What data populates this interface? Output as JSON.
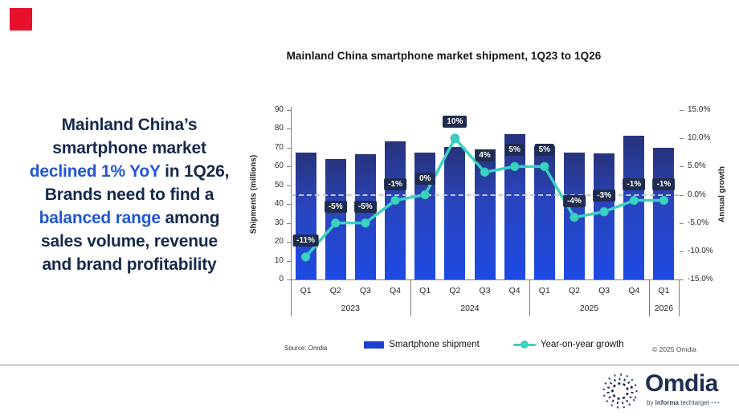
{
  "page": {
    "background": "#ffffff"
  },
  "brand": {
    "red_square_color": "#e8112d"
  },
  "headline": {
    "lines": [
      [
        {
          "t": "Mainland China’s",
          "c": "navy"
        }
      ],
      [
        {
          "t": "smartphone market",
          "c": "navy"
        }
      ],
      [
        {
          "t": "declined 1% YoY",
          "c": "blue"
        },
        {
          "t": " in 1Q26,",
          "c": "navy"
        }
      ],
      [
        {
          "t": "Brands need to find a",
          "c": "navy"
        }
      ],
      [
        {
          "t": "balanced range",
          "c": "blue"
        },
        {
          "t": " among",
          "c": "navy"
        }
      ],
      [
        {
          "t": "sales volume, revenue",
          "c": "navy"
        }
      ],
      [
        {
          "t": "and brand profitability",
          "c": "navy"
        }
      ]
    ],
    "navy": "#16294d",
    "blue": "#2156d4"
  },
  "chart_data": {
    "type": "bar",
    "title": "Mainland China smartphone market shipment, 1Q23 to 1Q26",
    "categories": [
      "Q1",
      "Q2",
      "Q3",
      "Q4",
      "Q1",
      "Q2",
      "Q3",
      "Q4",
      "Q1",
      "Q2",
      "Q3",
      "Q4",
      "Q1"
    ],
    "year_groups": [
      {
        "label": "2023",
        "span": 4
      },
      {
        "label": "2024",
        "span": 4
      },
      {
        "label": "2025",
        "span": 4
      },
      {
        "label": "2026",
        "span": 1
      }
    ],
    "series": [
      {
        "name": "Smartphone shipment",
        "type": "bar",
        "axis": "left",
        "values": [
          67.5,
          64,
          66.5,
          73.5,
          67.5,
          70.4,
          69,
          77,
          71,
          67.5,
          67,
          76.5,
          70
        ]
      },
      {
        "name": "Year-on-year growth",
        "type": "line",
        "axis": "right",
        "values": [
          -11,
          -5,
          -5,
          -1,
          0,
          10,
          4,
          5,
          5,
          -4,
          -3,
          -1,
          -1
        ],
        "labels": [
          "-11%",
          "-5%",
          "-5%",
          "-1%",
          "0%",
          "10%",
          "4%",
          "5%",
          "5%",
          "-4%",
          "-3%",
          "-1%",
          "-1%"
        ]
      }
    ],
    "left_axis": {
      "label": "Shipments (millions)",
      "min": 0,
      "max": 90,
      "ticks": [
        90,
        80,
        70,
        60,
        50,
        40,
        30,
        20,
        10,
        0
      ]
    },
    "right_axis": {
      "label": "Annual growth",
      "min": -15,
      "max": 15,
      "ticks": [
        "15.0%",
        "10.0%",
        "5.0%",
        "0.0%",
        "-5.0%",
        "-10.0%",
        "-15.0%"
      ]
    },
    "zero_reference_line_pct": 0,
    "grid": "off",
    "legend_position": "bottom",
    "colors": {
      "bar_top": "#28337b",
      "bar_mid": "#2a45bd",
      "bar_bottom": "#1d4ae4",
      "line": "#3cd1c3",
      "label_box": "#1f2c4e",
      "label_text": "#ffffff",
      "legend_bar": "#1d40cf"
    }
  },
  "footer": {
    "source": "Source: Omdia",
    "copyright": "© 2025 Omdia"
  },
  "logo": {
    "name": "Omdia",
    "tagline_pre": "by ",
    "tagline_bold": "informa",
    "tagline_post": " techtarget",
    "dots": "•••"
  }
}
